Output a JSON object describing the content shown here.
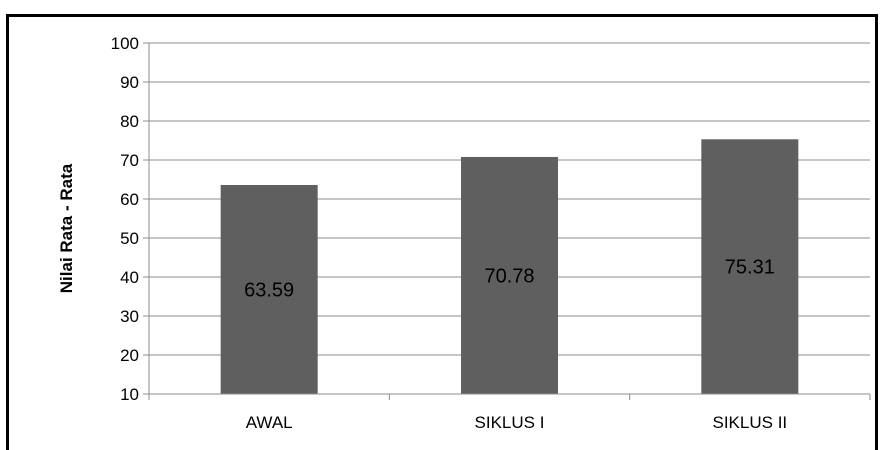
{
  "chart_data": {
    "type": "bar",
    "title": "",
    "xlabel": "",
    "ylabel": "Nilai Rata - Rata",
    "categories": [
      "AWAL",
      "SIKLUS I",
      "SIKLUS II"
    ],
    "values": [
      63.59,
      70.78,
      75.31
    ],
    "data_labels": [
      "63.59",
      "70.78",
      "75.31"
    ],
    "ylim": [
      10,
      100
    ],
    "y_ticks": [
      "10",
      "20",
      "30",
      "40",
      "50",
      "60",
      "70",
      "80",
      "90",
      "100"
    ],
    "grid": true,
    "legend": "none",
    "bar_color": "#5f5f5f",
    "grid_color": "#8c8c8c"
  }
}
